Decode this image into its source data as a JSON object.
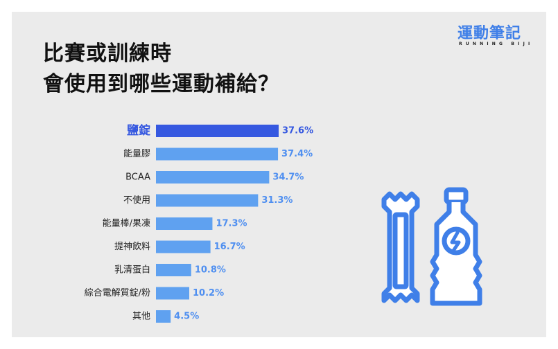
{
  "title_lines": [
    "比賽或訓練時",
    "會使用到哪些運動補給？"
  ],
  "brand": {
    "main": "運動筆記",
    "sub": "RUNNING BIJI"
  },
  "colors": {
    "highlight": "#3558e0",
    "bar": "#5fa1f0",
    "label": "#222222",
    "highlight_label": "#3558e0",
    "value": "#4f8ff0"
  },
  "icons": [
    "energy-bar-icon",
    "sports-drink-bottle-icon"
  ],
  "chart_data": {
    "type": "bar",
    "orientation": "horizontal",
    "categories": [
      "鹽錠",
      "能量膠",
      "BCAA",
      "不使用",
      "能量棒/果凍",
      "提神飲料",
      "乳清蛋白",
      "綜合電解質錠/粉",
      "其他"
    ],
    "values": [
      37.6,
      37.4,
      34.7,
      31.3,
      17.3,
      16.7,
      10.8,
      10.2,
      4.5
    ],
    "value_labels": [
      "37.6%",
      "37.4%",
      "34.7%",
      "31.3%",
      "17.3%",
      "16.7%",
      "10.8%",
      "10.2%",
      "4.5%"
    ],
    "highlight_index": 0,
    "unit": "%",
    "xlim": [
      0,
      37.6
    ]
  }
}
